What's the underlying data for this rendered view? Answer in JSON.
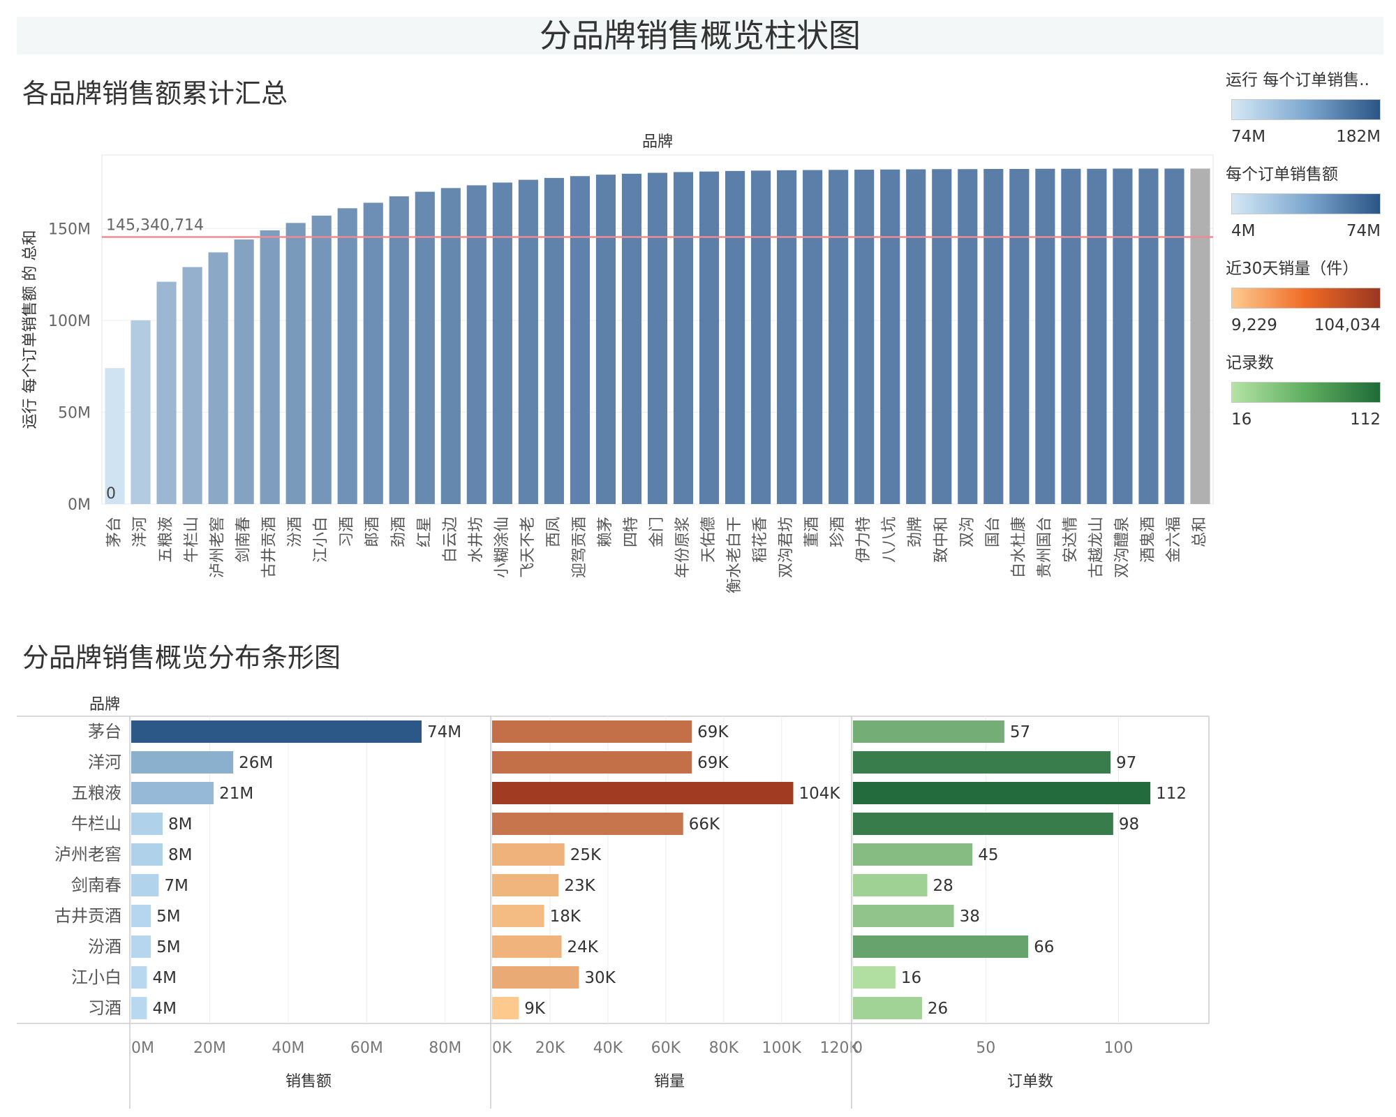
{
  "title": "分品牌销售概览柱状图",
  "top_section_title": "各品牌销售额累计汇总",
  "bottom_section_title": "分品牌销售概览分布条形图",
  "colors": {
    "running_low": "#cfe3f2",
    "running_high": "#5a7ea8",
    "total_bar": "#b0b0b0",
    "reference_line": "#f08a92",
    "sales_low": "#b7d8ef",
    "sales_high": "#2b5886",
    "volume_low": "#fdc98c",
    "volume_high": "#a13c22",
    "orders_low": "#b1dfa1",
    "orders_high": "#236b3c"
  },
  "legends": [
    {
      "title": "运行 每个订单销售..",
      "min": "74M",
      "max": "182M",
      "ramp": [
        "#d4e8f6",
        "#7ea8cf",
        "#2a5585"
      ]
    },
    {
      "title": "每个订单销售额",
      "min": "4M",
      "max": "74M",
      "ramp": [
        "#d4e8f6",
        "#7ea8cf",
        "#2a5585"
      ]
    },
    {
      "title": "近30天销量（件）",
      "min": "9,229",
      "max": "104,034",
      "ramp": [
        "#fdca8f",
        "#ef6b25",
        "#9a3622"
      ]
    },
    {
      "title": "记录数",
      "min": "16",
      "max": "112",
      "ramp": [
        "#b5e3a4",
        "#5fae60",
        "#1f6b38"
      ]
    }
  ],
  "chart_data": [
    {
      "type": "bar",
      "title": "各品牌销售额累计汇总",
      "header": "品牌",
      "ylabel": "运行 每个订单销售额 的 总和",
      "ylim": [
        0,
        190000000
      ],
      "yticks": [
        0,
        50000000,
        100000000,
        150000000
      ],
      "ytick_labels": [
        "0M",
        "50M",
        "100M",
        "150M"
      ],
      "reference_line": {
        "value": 145340714,
        "label": "145,340,714"
      },
      "first_bar_label": "0",
      "categories": [
        "茅台",
        "洋河",
        "五粮液",
        "牛栏山",
        "泸州老窖",
        "剑南春",
        "古井贡酒",
        "汾酒",
        "江小白",
        "习酒",
        "郎酒",
        "劲酒",
        "红星",
        "白云边",
        "水井坊",
        "小糊涂仙",
        "飞天不老",
        "西凤",
        "迎驾贡酒",
        "赖茅",
        "四特",
        "金门",
        "年份原浆",
        "天佑德",
        "衡水老白干",
        "稻花香",
        "双沟君坊",
        "董酒",
        "珍酒",
        "伊力特",
        "八八坑",
        "劲牌",
        "致中和",
        "双沟",
        "国台",
        "白水杜康",
        "贵州国台",
        "安达情",
        "古越龙山",
        "双沟醴泉",
        "酒鬼酒",
        "金六福",
        "总和"
      ],
      "values": [
        74000000,
        100000000,
        121000000,
        129000000,
        137000000,
        144000000,
        149000000,
        153000000,
        157000000,
        161000000,
        164000000,
        167500000,
        170000000,
        172000000,
        173500000,
        175000000,
        176500000,
        177500000,
        178500000,
        179300000,
        179800000,
        180300000,
        180700000,
        181000000,
        181300000,
        181500000,
        181700000,
        181800000,
        181900000,
        182000000,
        182100000,
        182200000,
        182300000,
        182300000,
        182400000,
        182400000,
        182500000,
        182500000,
        182500000,
        182600000,
        182600000,
        182600000,
        182600000
      ]
    },
    {
      "type": "bar",
      "orientation": "horizontal",
      "title": "分品牌销售概览分布条形图",
      "row_header": "品牌",
      "categories": [
        "茅台",
        "洋河",
        "五粮液",
        "牛栏山",
        "泸州老窖",
        "剑南春",
        "古井贡酒",
        "汾酒",
        "江小白",
        "习酒"
      ],
      "panels": [
        {
          "name": "销售额",
          "xlim": [
            0,
            90000000
          ],
          "ticks": [
            0,
            20000000,
            40000000,
            60000000,
            80000000
          ],
          "tick_labels": [
            "0M",
            "20M",
            "40M",
            "60M",
            "80M"
          ],
          "values": [
            74000000,
            26000000,
            21000000,
            8000000,
            8000000,
            7000000,
            5000000,
            5000000,
            4000000,
            4000000
          ],
          "labels": [
            "74M",
            "26M",
            "21M",
            "8M",
            "8M",
            "7M",
            "5M",
            "5M",
            "4M",
            "4M"
          ]
        },
        {
          "name": "销量",
          "xlim": [
            0,
            122000
          ],
          "ticks": [
            0,
            20000,
            40000,
            60000,
            80000,
            100000,
            120000
          ],
          "tick_labels": [
            "0K",
            "20K",
            "40K",
            "60K",
            "80K",
            "100K",
            "120K"
          ],
          "values": [
            69000,
            69000,
            104034,
            66000,
            25000,
            23000,
            18000,
            24000,
            30000,
            9229
          ],
          "labels": [
            "69K",
            "69K",
            "104K",
            "66K",
            "25K",
            "23K",
            "18K",
            "24K",
            "30K",
            "9K"
          ]
        },
        {
          "name": "订单数",
          "xlim": [
            0,
            133
          ],
          "ticks": [
            0,
            50,
            100
          ],
          "tick_labels": [
            "0",
            "50",
            "100"
          ],
          "values": [
            57,
            97,
            112,
            98,
            45,
            28,
            38,
            66,
            16,
            26
          ],
          "labels": [
            "57",
            "97",
            "112",
            "98",
            "45",
            "28",
            "38",
            "66",
            "16",
            "26"
          ]
        }
      ]
    }
  ]
}
